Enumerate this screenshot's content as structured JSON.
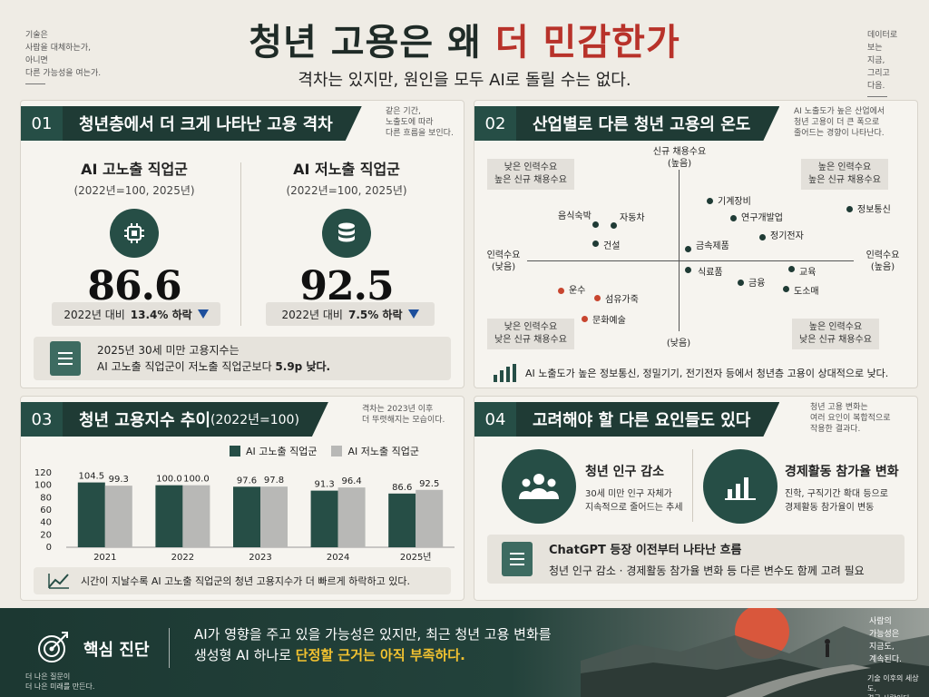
{
  "header": {
    "left_note": "기술은\n사람을 대체하는가,\n아니면\n다른 가능성을 여는가.",
    "right_note": "데이터로\n보는\n지금,\n그리고\n다음.",
    "title_dark": "청년 고용은 왜 ",
    "title_red": "더 민감한가",
    "subtitle": "격차는 있지만, 원인을 모두 AI로 돌릴 수는 없다."
  },
  "section1": {
    "number": "01",
    "title": "청년층에서 더 크게 나타난 고용 격차",
    "note": "같은 기간,\n노출도에 따라\n다른 흐름을 보인다.",
    "high": {
      "title": "AI 고노출 직업군",
      "sub": "(2022년=100, 2025년)",
      "icon": "chip-icon",
      "value": "86.6",
      "change_prefix": "2022년 대비 ",
      "change": "13.4% 하락"
    },
    "low": {
      "title": "AI 저노출 직업군",
      "sub": "(2022년=100, 2025년)",
      "icon": "database-icon",
      "value": "92.5",
      "change_prefix": "2022년 대비 ",
      "change": "7.5% 하락"
    },
    "summary_line1": "2025년 30세 미만 고용지수는",
    "summary_line2_a": "AI 고노출 직업군이 저노출 직업군보다 ",
    "summary_line2_b": "5.9p 낮다."
  },
  "section2": {
    "number": "02",
    "title": "산업별로 다른 청년 고용의 온도",
    "note": "AI 노출도가 높은 산업에서\n청년 고용이 더 큰 폭으로\n줄어드는 경향이 나타난다.",
    "axis_top_1": "신규 채용수요",
    "axis_top_2": "(높음)",
    "axis_bottom": "(낮음)",
    "axis_left_1": "인력수요",
    "axis_left_2": "(낮음)",
    "axis_right_1": "인력수요",
    "axis_right_2": "(높음)",
    "corner_tl": "낮은 인력수요\n높은 신규 채용수요",
    "corner_tr": "높은 인력수요\n높은 신규 채용수요",
    "corner_bl": "낮은 인력수요\n낮은 신규 채용수요",
    "corner_br": "높은 인력수요\n낮은 신규 채용수요",
    "industries": [
      {
        "label": "음식숙박",
        "color": "#1f3b35"
      },
      {
        "label": "자동차",
        "color": "#1f3b35"
      },
      {
        "label": "건설",
        "color": "#1f3b35"
      },
      {
        "label": "기계장비",
        "color": "#1f3b35"
      },
      {
        "label": "연구개발업",
        "color": "#1f3b35"
      },
      {
        "label": "정보통신",
        "color": "#1f3b35"
      },
      {
        "label": "정기전자",
        "color": "#1f3b35"
      },
      {
        "label": "금속제품",
        "color": "#1f3b35"
      },
      {
        "label": "식료품",
        "color": "#1f3b35"
      },
      {
        "label": "교육",
        "color": "#1f3b35"
      },
      {
        "label": "금융",
        "color": "#1f3b35"
      },
      {
        "label": "도소매",
        "color": "#1f3b35"
      },
      {
        "label": "운수",
        "color": "#c8452f"
      },
      {
        "label": "섬유가죽",
        "color": "#c8452f"
      },
      {
        "label": "문화예술",
        "color": "#c8452f"
      }
    ],
    "footer": "AI 노출도가 높은 정보통신, 정밀기기, 전기전자 등에서 청년층 고용이 상대적으로 낮다."
  },
  "section3": {
    "number": "03",
    "title": "청년 고용지수 추이",
    "title_unit": " (2022년=100)",
    "note": "격차는 2023년 이후\n더 뚜렷해지는 모습이다.",
    "footer": "시간이 지날수록 AI 고노출 직업군의 청년 고용지수가 더 빠르게 하락하고 있다."
  },
  "section4": {
    "number": "04",
    "title": "고려해야 할 다른 요인들도 있다",
    "note": "청년 고용 변화는\n여러 요인이 복합적으로\n작용한 결과다.",
    "factor1_title": "청년 인구 감소",
    "factor1_desc": "30세 미만 인구 자체가\n지속적으로 줄어드는 추세",
    "factor2_title": "경제활동 참가율 변화",
    "factor2_desc": "진학, 구직기간 확대 등으로\n경제활동 참가율이 변동",
    "box_title": "ChatGPT 등장 이전부터 나타난 흐름",
    "box_desc": "청년 인구 감소 · 경제활동 참가율 변화 등 다른 변수도 함께 고려 필요"
  },
  "banner": {
    "label": "핵심 진단",
    "line1": "AI가 영향을 주고 있을 가능성은 있지만, 최근 청년 고용 변화를",
    "line2_a": "생성형 AI 하나로 ",
    "line2_b": "단정할 근거는 아직 부족하다.",
    "right_note": "사람의\n가능성은\n지금도,\n계속된다.",
    "bottom_left": "더 나은 질문이\n더 나은 미래를 만든다.",
    "bottom_right": "기술 이후의 세상도,\n결국 사람이다."
  },
  "chart_data": {
    "type": "bar",
    "title": "청년 고용지수 추이 (2022년=100)",
    "categories": [
      "2021",
      "2022",
      "2023",
      "2024",
      "2025년"
    ],
    "series": [
      {
        "name": "AI 고노출 직업군",
        "values": [
          104.5,
          100.0,
          97.6,
          91.3,
          86.6
        ],
        "color": "#264e46"
      },
      {
        "name": "AI 저노출 직업군",
        "values": [
          99.3,
          100.0,
          97.8,
          96.4,
          92.5
        ],
        "color": "#b8b8b6"
      }
    ],
    "ylim": [
      0,
      120
    ],
    "yticks": [
      0,
      20,
      40,
      60,
      80,
      100,
      120
    ],
    "grid": false,
    "legend": "top"
  }
}
